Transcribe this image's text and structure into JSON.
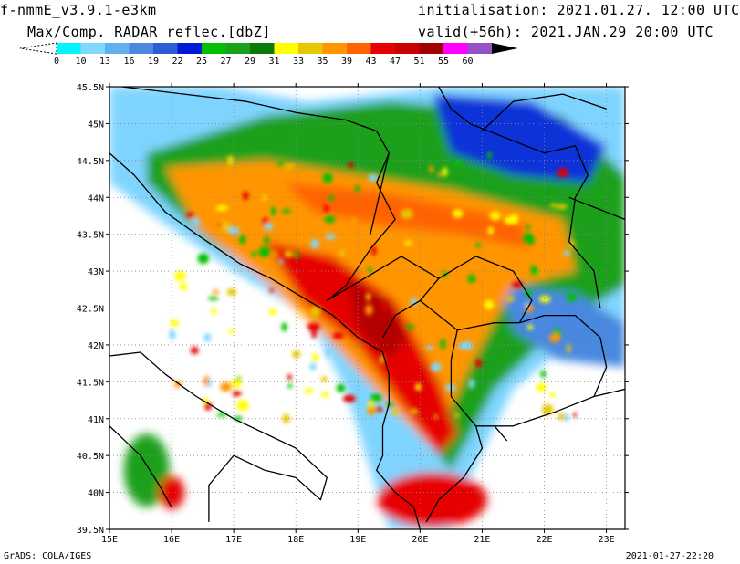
{
  "header": {
    "model": "f-nmmE_v3.9.1-e3km",
    "field": "Max/Comp. RADAR reflec.[dbZ]",
    "initialisation": "initialisation: 2021.01.27. 12:00 UTC",
    "valid": "valid(+56h): 2021.JAN.29 20:00 UTC"
  },
  "colorbar": {
    "labels": [
      "0",
      "10",
      "13",
      "16",
      "19",
      "22",
      "25",
      "27",
      "29",
      "31",
      "33",
      "35",
      "39",
      "43",
      "47",
      "51",
      "55",
      "60"
    ],
    "colors": [
      "#00f5ff",
      "#80d8ff",
      "#60b0f0",
      "#4a88e0",
      "#2c5cd6",
      "#0018d8",
      "#00c000",
      "#1aa01a",
      "#0a7a0a",
      "#ffff00",
      "#e6c800",
      "#ff9600",
      "#ff6400",
      "#e60000",
      "#c80000",
      "#a00000",
      "#ff00ff",
      "#9650c8",
      "#000000"
    ]
  },
  "map": {
    "lat_labels": [
      "45.5N",
      "45N",
      "44.5N",
      "44N",
      "43.5N",
      "43N",
      "42.5N",
      "42N",
      "41.5N",
      "41N",
      "40.5N",
      "40N",
      "39.5N"
    ],
    "lon_labels": [
      "15E",
      "16E",
      "17E",
      "18E",
      "19E",
      "20E",
      "21E",
      "22E",
      "23E"
    ]
  },
  "footer": {
    "left": "GrADS: COLA/IGES",
    "right": "2021-01-27-22:20"
  }
}
